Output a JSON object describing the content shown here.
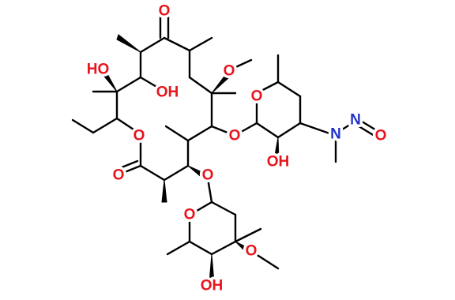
{
  "atoms": [
    {
      "label": "O"
    },
    {
      "label": "HO"
    },
    {
      "label": "OH"
    },
    {
      "label": "O"
    },
    {
      "label": "O"
    },
    {
      "label": "O"
    },
    {
      "label": "O"
    },
    {
      "label": "OH"
    },
    {
      "label": "N"
    },
    {
      "label": "N"
    },
    {
      "label": "O"
    },
    {
      "label": "O"
    },
    {
      "label": "O"
    },
    {
      "label": "O"
    },
    {
      "label": "O"
    },
    {
      "label": "OH"
    }
  ]
}
